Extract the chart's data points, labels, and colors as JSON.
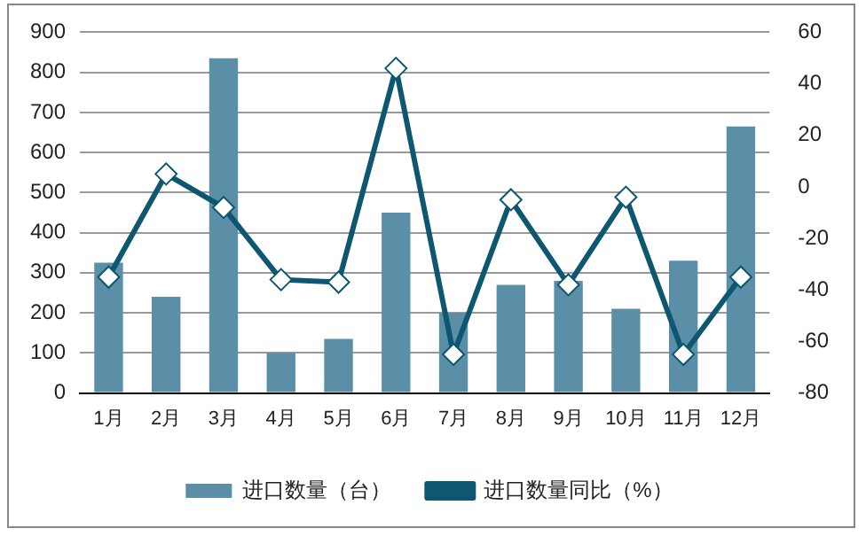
{
  "chart_data": {
    "type": "bar",
    "categories": [
      "1月",
      "2月",
      "3月",
      "4月",
      "5月",
      "6月",
      "7月",
      "8月",
      "9月",
      "10月",
      "11月",
      "12月"
    ],
    "series": [
      {
        "name": "进口数量（台）",
        "color": "#5b8fa8",
        "values": [
          325,
          240,
          835,
          100,
          135,
          450,
          200,
          270,
          280,
          210,
          330,
          665
        ]
      },
      {
        "name": "进口数量同比（%）",
        "type": "line",
        "axis": "y2",
        "color": "#0d5770",
        "marker": "diamond",
        "values": [
          -35,
          5,
          -8,
          -36,
          -37,
          46,
          -65,
          -5,
          -38,
          -4,
          -65,
          -35
        ]
      }
    ],
    "ylim": [
      0,
      900
    ],
    "yticks": [
      0,
      100,
      200,
      300,
      400,
      500,
      600,
      700,
      800,
      900
    ],
    "y2lim": [
      -80,
      60
    ],
    "y2ticks": [
      -80,
      -60,
      -40,
      -20,
      0,
      20,
      40,
      60
    ],
    "grid": "y",
    "legend": "bottom"
  }
}
